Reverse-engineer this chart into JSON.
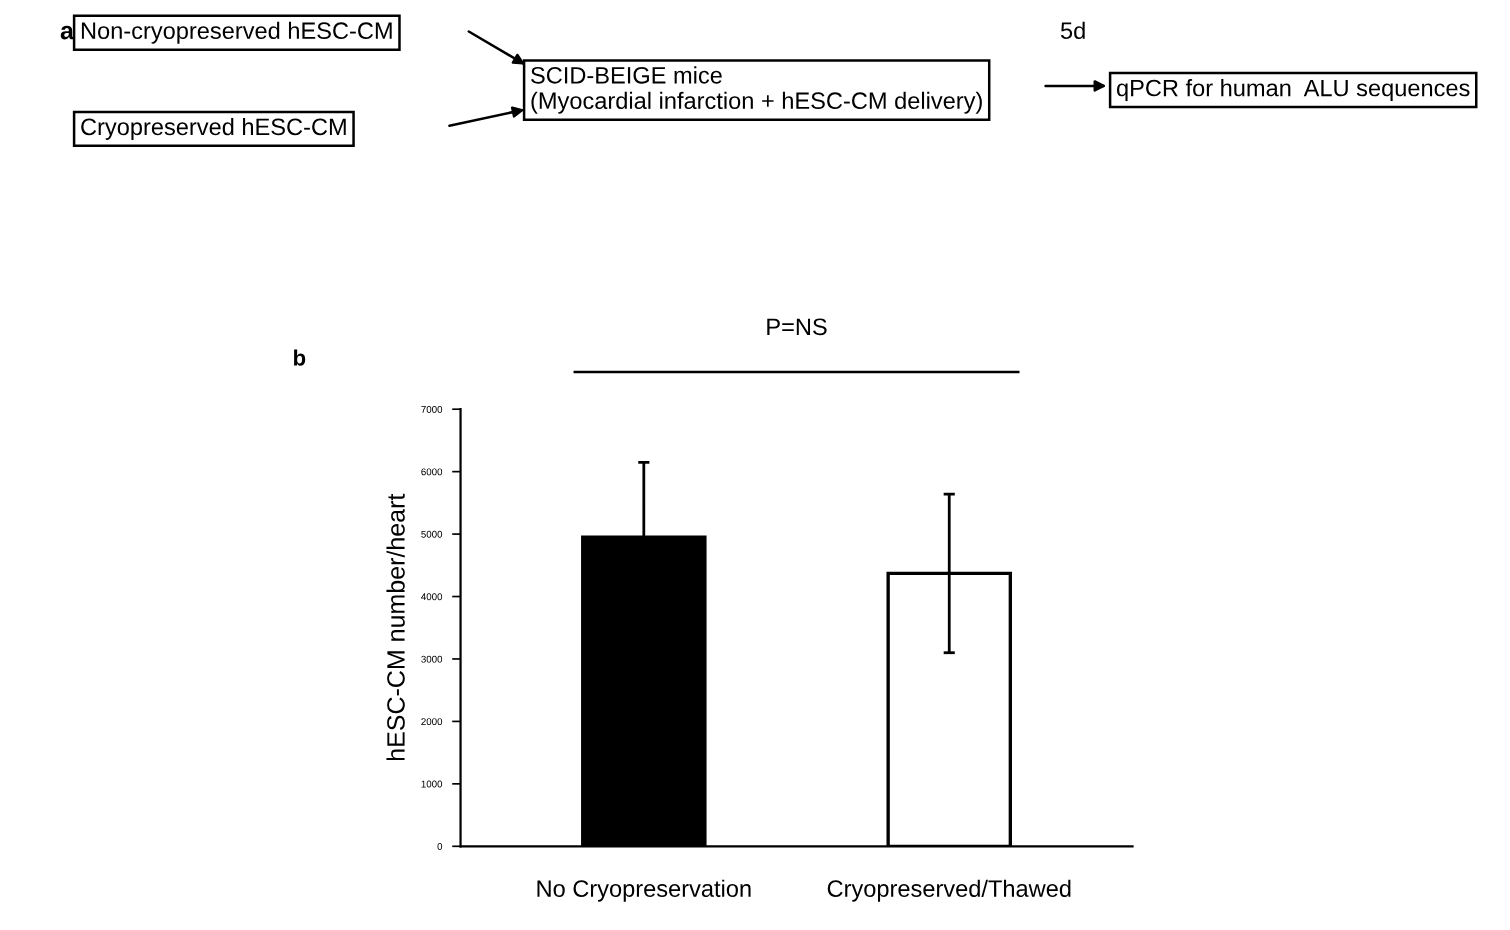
{
  "chart_data": [
    {
      "type": "other",
      "annotations": [
        "a",
        "Non-cryopreserved hESC-CM",
        "Cryopreserved hESC-CM",
        "SCID-BEIGE mice\n(Myocardial infarction + hESC-CM delivery)",
        "5d",
        "qPCR for human  ALU sequences"
      ]
    },
    {
      "type": "bar",
      "categories": [
        "No Cryopreservation",
        "Cryopreserved/Thawed"
      ],
      "values": [
        4950,
        4370
      ],
      "colors": [
        "#000000",
        "#ffffff"
      ],
      "errors": [
        1200,
        1270
      ],
      "ylim": [
        0,
        7000
      ],
      "yticks": [
        0,
        1000,
        2000,
        3000,
        4000,
        5000,
        6000,
        7000
      ],
      "ylabel": "hESC-CM number/heart",
      "annotations": [
        "b",
        "P=NS"
      ],
      "grid": false,
      "legend": false
    }
  ]
}
